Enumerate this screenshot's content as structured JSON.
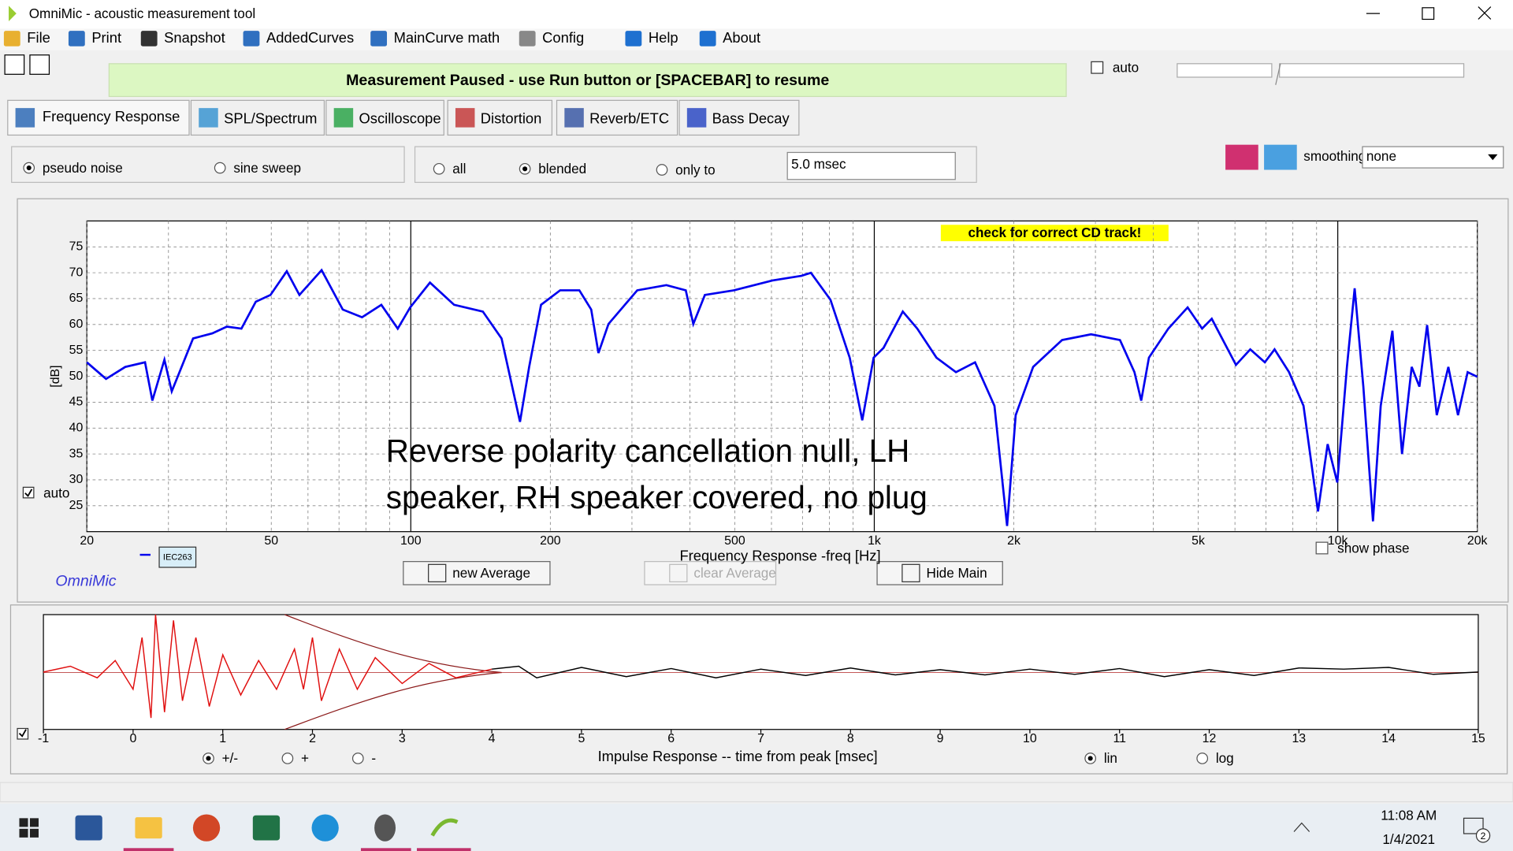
{
  "window": {
    "title": "OmniMic - acoustic measurement tool"
  },
  "menu": [
    "File",
    "Print",
    "Snapshot",
    "AddedCurves",
    "MainCurve math",
    "Config",
    "Help",
    "About"
  ],
  "status": "Measurement Paused - use Run button or [SPACEBAR] to resume",
  "auto_label": "auto",
  "tabs": [
    "Frequency Response",
    "SPL/Spectrum",
    "Oscilloscope",
    "Distortion",
    "Reverb/ETC",
    "Bass Decay"
  ],
  "signal_options": [
    "pseudo noise",
    "sine sweep"
  ],
  "window_options": [
    "all",
    "blended",
    "only to"
  ],
  "window_time": "5.0 msec",
  "smoothing_label": "smoothing",
  "smoothing_value": "none",
  "freq_panel": {
    "warning": "check for correct CD track!",
    "auto": "auto",
    "legend_tag": "IEC263",
    "brand": "OmniMic",
    "show_phase": "show phase",
    "buttons": [
      "new Average",
      "clear Average",
      "Hide Main"
    ]
  },
  "impulse_panel": {
    "polarity_options": [
      "+/-",
      "+",
      "-"
    ],
    "scale_options": [
      "lin",
      "log"
    ]
  },
  "taskbar": {
    "time": "11:08 AM",
    "date": "1/4/2021",
    "notifications": "2"
  },
  "chart_data": [
    {
      "type": "line",
      "xscale": "log",
      "grid": true,
      "xlabel": "Frequency Response -freq [Hz]",
      "ylabel": "[dB]",
      "annotation": [
        "Reverse polarity cancellation null, LH",
        "speaker, RH speaker covered, no plug"
      ],
      "xlim": [
        20,
        20000
      ],
      "ylim": [
        20,
        80
      ],
      "xticks": [
        20,
        50,
        100,
        200,
        500,
        {
          "value": 1000,
          "label": "1k"
        },
        {
          "value": 2000,
          "label": "2k"
        },
        {
          "value": 5000,
          "label": "5k"
        },
        {
          "value": 10000,
          "label": "10k"
        },
        {
          "value": 20000,
          "label": "20k"
        }
      ],
      "xminor": [
        30,
        40,
        60,
        70,
        80,
        90,
        300,
        400,
        600,
        700,
        800,
        900,
        3000,
        4000,
        6000,
        7000,
        8000,
        9000
      ],
      "yticks": [
        25,
        30,
        35,
        40,
        45,
        50,
        55,
        60,
        65,
        70,
        75
      ],
      "x": [
        20,
        22,
        24.2,
        26.7,
        27.7,
        29.4,
        30.5,
        33.9,
        37.3,
        40.1,
        43.1,
        46.3,
        49.8,
        54,
        57.5,
        64.2,
        71.3,
        78.5,
        86.4,
        93.7,
        99.7,
        110,
        124,
        143,
        157,
        172,
        180,
        191,
        210,
        231,
        245,
        254,
        267,
        308,
        356,
        392,
        407,
        431,
        498,
        603,
        696,
        730,
        804,
        885,
        942,
        997,
        1047,
        1152,
        1238,
        1362,
        1500,
        1650,
        1817,
        1934,
        2019,
        2202,
        2542,
        2935,
        3389,
        3642,
        3767,
        3914,
        4309,
        4742,
        5097,
        5348,
        6030,
        6475,
        6960,
        7305,
        7850,
        8434,
        9065,
        9510,
        9975,
        10468,
        10874,
        11356,
        11914,
        12380,
        13114,
        13760,
        14438,
        14998,
        15586,
        16350,
        17320,
        18172,
        19064,
        20000
      ],
      "series": [
        {
          "color": "#0000ee",
          "values": [
            52.7,
            49.5,
            51.8,
            52.7,
            45.3,
            53.2,
            47.1,
            57.3,
            58.3,
            59.6,
            59.2,
            64.4,
            65.7,
            70.3,
            65.7,
            70.5,
            62.9,
            61.4,
            63.8,
            59.2,
            63.3,
            68.1,
            63.8,
            62.5,
            57.3,
            41.2,
            51.8,
            63.8,
            66.6,
            66.6,
            62.9,
            54.5,
            60.1,
            66.6,
            67.6,
            66.6,
            60.1,
            65.7,
            66.6,
            68.5,
            69.4,
            70.0,
            64.8,
            53.6,
            41.5,
            53.6,
            55.5,
            62.5,
            59.2,
            53.6,
            50.8,
            52.7,
            44.3,
            21.1,
            42.5,
            51.8,
            57.0,
            58.1,
            57.0,
            50.8,
            45.3,
            53.6,
            59.2,
            63.3,
            59.2,
            61.1,
            52.2,
            55.2,
            52.7,
            55.2,
            50.8,
            44.3,
            23.9,
            36.9,
            29.5,
            51.8,
            67.0,
            48.0,
            22.0,
            44.3,
            58.8,
            35.0,
            51.8,
            48.0,
            59.9,
            42.5,
            51.8,
            42.5,
            50.8,
            49.9
          ]
        }
      ]
    },
    {
      "type": "line",
      "xlabel": "Impulse Response  -- time from peak [msec]",
      "xlim": [
        -1,
        15
      ],
      "ylim": [
        -1,
        1
      ],
      "xticks": [
        -1,
        0,
        1,
        2,
        3,
        4,
        5,
        6,
        7,
        8,
        9,
        10,
        11,
        12,
        13,
        14,
        15
      ],
      "series": [
        {
          "color": "#e01010",
          "x": [
            -1,
            -0.7,
            -0.4,
            -0.2,
            0,
            0.1,
            0.2,
            0.25,
            0.35,
            0.45,
            0.55,
            0.7,
            0.85,
            1.0,
            1.2,
            1.4,
            1.6,
            1.8,
            1.9,
            2.0,
            2.1,
            2.3,
            2.5,
            2.7,
            3.0,
            3.3,
            3.6,
            4.0
          ],
          "values": [
            0,
            0.1,
            -0.1,
            0.2,
            -0.3,
            0.6,
            -0.8,
            1.0,
            -0.7,
            0.9,
            -0.5,
            0.6,
            -0.6,
            0.3,
            -0.4,
            0.2,
            -0.3,
            0.4,
            -0.3,
            0.6,
            -0.5,
            0.4,
            -0.3,
            0.25,
            -0.2,
            0.15,
            -0.1,
            0.05
          ]
        },
        {
          "color": "#000000",
          "x": [
            4.0,
            4.3,
            4.5,
            5,
            5.5,
            6,
            6.5,
            7,
            7.5,
            8,
            8.5,
            9,
            9.5,
            10,
            10.5,
            11,
            11.5,
            12,
            12.5,
            13,
            13.5,
            14,
            14.5,
            15
          ],
          "values": [
            0.05,
            0.1,
            -0.1,
            0.08,
            -0.08,
            0.06,
            -0.1,
            0.05,
            -0.06,
            0.07,
            -0.05,
            0.04,
            -0.05,
            0.05,
            -0.04,
            0.06,
            -0.08,
            0.04,
            -0.06,
            0.07,
            0.05,
            0.08,
            -0.04,
            0
          ]
        }
      ]
    }
  ]
}
